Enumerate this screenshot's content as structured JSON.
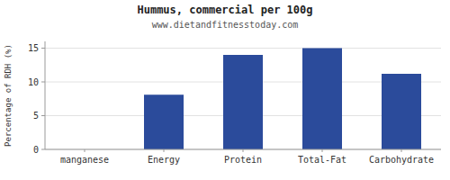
{
  "chart_data": {
    "type": "bar",
    "title": "Hummus, commercial per 100g",
    "subtitle": "www.dietandfitnesstoday.com",
    "categories": [
      "manganese",
      "Energy",
      "Protein",
      "Total-Fat",
      "Carbohydrate"
    ],
    "values": [
      0,
      8.1,
      14.0,
      15.0,
      11.2
    ],
    "color": "#2b4b9b",
    "ylabel": "Percentage of RDH (%)",
    "ylim": [
      0,
      16
    ],
    "yticks": [
      0,
      5,
      10,
      15
    ],
    "grid": true
  }
}
